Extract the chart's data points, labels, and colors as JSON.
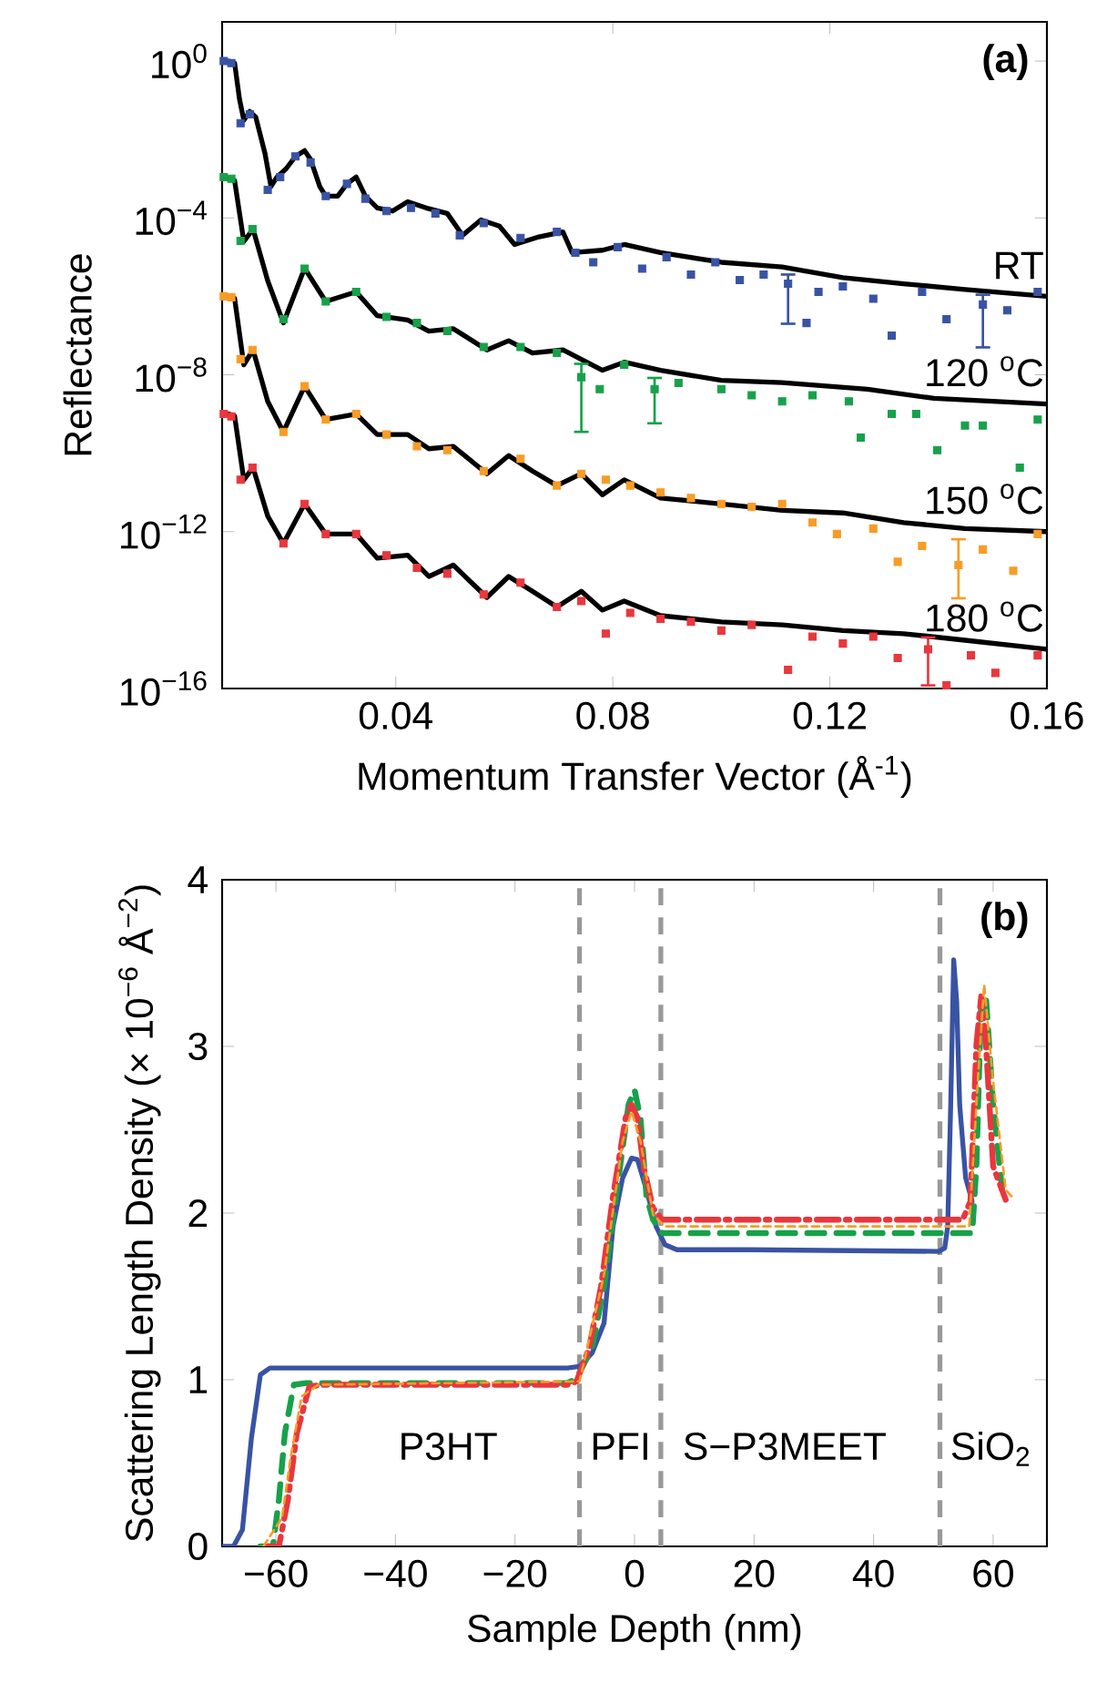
{
  "chart_data": [
    {
      "type": "scatter",
      "xlabel": "Momentum Transfer Vector (Å$^{-1}$)",
      "ylabel": "Reflectance",
      "log": "y",
      "xlim": [
        0.008,
        0.16
      ],
      "ylim": [
        1e-16,
        10
      ],
      "xticks": [
        0.04,
        0.08,
        0.12,
        0.16
      ],
      "yticks": [
        {
          "value": 1,
          "label": "10$^{0}$"
        },
        {
          "value": 0.0001,
          "label": "10$^{−4}$"
        },
        {
          "value": 1e-08,
          "label": "10$^{−8}$"
        },
        {
          "value": 1e-12,
          "label": "10$^{−12}$"
        },
        {
          "value": 1e-16,
          "label": "10$^{−16}$"
        }
      ],
      "annotations": [
        "(a)"
      ],
      "series": [
        {
          "name": "RT",
          "marker": "square",
          "color": "#3953a4",
          "x": [
            0.0083,
            0.0097,
            0.0114,
            0.0131,
            0.0164,
            0.0187,
            0.0215,
            0.0243,
            0.0271,
            0.031,
            0.0344,
            0.0383,
            0.0428,
            0.0473,
            0.0518,
            0.0562,
            0.063,
            0.0697,
            0.0731,
            0.0764,
            0.0809,
            0.0854,
            0.0899,
            0.0944,
            0.0989,
            0.1034,
            0.1078,
            0.1123,
            0.1157,
            0.1179,
            0.1224,
            0.128,
            0.1314,
            0.137,
            0.1415,
            0.1482,
            0.1527,
            0.1583
          ],
          "values": [
            1,
            0.89,
            0.026,
            0.044,
            0.00052,
            0.0011,
            0.0037,
            0.0026,
            0.00036,
            0.00074,
            0.00031,
            0.00015,
            0.00018,
            0.00013,
            3.6e-05,
            7.4e-05,
            3.1e-05,
            4.4e-05,
            1.3e-05,
            7.4e-06,
            1.8e-05,
            5.1e-06,
            1e-05,
            3.6e-06,
            7.4e-06,
            2.6e-06,
            3.6e-06,
            2.1e-06,
            2.1e-07,
            1.3e-06,
            1.8e-06,
            8.7e-07,
            1e-07,
            1.3e-06,
            2.6e-07,
            6.2e-07,
            4.4e-07,
            1.3e-06
          ],
          "errors": [
            null,
            null,
            null,
            null,
            null,
            null,
            null,
            null,
            null,
            null,
            null,
            null,
            null,
            null,
            null,
            null,
            null,
            null,
            null,
            null,
            null,
            null,
            null,
            null,
            null,
            null,
            null,
            [
              2e-07,
              3.6e-06
            ],
            null,
            null,
            null,
            null,
            null,
            null,
            null,
            [
              5e-08,
              1.1e-06
            ],
            null,
            null
          ]
        },
        {
          "name": "120 $^{o}$C",
          "marker": "square",
          "color": "#17a14a",
          "x": [
            0.0083,
            0.0097,
            0.0114,
            0.0136,
            0.0193,
            0.0232,
            0.0271,
            0.0327,
            0.0383,
            0.0439,
            0.0495,
            0.0562,
            0.063,
            0.0697,
            0.0742,
            0.0776,
            0.0821,
            0.0877,
            0.0921,
            0.1,
            0.1056,
            0.1112,
            0.1168,
            0.1235,
            0.1257,
            0.1314,
            0.1359,
            0.1398,
            0.1449,
            0.1482,
            0.155,
            0.1583
          ],
          "values": [
            0.0011,
            0.001,
            2.6e-05,
            5.2e-05,
            2.6e-07,
            5.1e-06,
            7.4e-07,
            1.3e-06,
            3e-07,
            2.1e-07,
            1.3e-07,
            5.1e-08,
            5.1e-08,
            3.6e-08,
            8.7e-09,
            4.3e-09,
            1.8e-08,
            4.3e-09,
            6.2e-09,
            4.3e-09,
            3e-09,
            2.1e-09,
            3e-09,
            2.1e-09,
            2.5e-10,
            1e-09,
            1e-09,
            1.2e-10,
            5.1e-10,
            5.1e-10,
            4.3e-11,
            7.2e-10
          ],
          "errors": [
            null,
            null,
            null,
            null,
            null,
            null,
            null,
            null,
            null,
            null,
            null,
            null,
            null,
            null,
            [
              3.5e-10,
              1.9e-08
            ],
            null,
            null,
            [
              5.8e-10,
              8.3e-09
            ],
            null,
            null,
            null,
            null,
            null,
            null,
            null,
            null,
            null,
            null,
            null,
            null,
            null,
            null
          ]
        },
        {
          "name": "150 $^{o}$C",
          "marker": "square",
          "color": "#f89c27",
          "x": [
            0.0083,
            0.0097,
            0.0114,
            0.0136,
            0.0193,
            0.0232,
            0.0271,
            0.0327,
            0.0383,
            0.0439,
            0.0495,
            0.0562,
            0.063,
            0.0697,
            0.0742,
            0.0787,
            0.0832,
            0.0888,
            0.0944,
            0.1,
            0.1056,
            0.1112,
            0.1168,
            0.1213,
            0.128,
            0.1325,
            0.137,
            0.1437,
            0.1482,
            0.1538,
            0.1583
          ],
          "values": [
            1e-06,
            9.5e-07,
            2.5e-08,
            4.3e-08,
            3.5e-10,
            5.1e-09,
            7.2e-10,
            1e-09,
            3e-10,
            1.5e-10,
            1.2e-10,
            3.5e-11,
            7.2e-11,
            1.5e-11,
            3e-11,
            2.1e-11,
            1.5e-11,
            1e-11,
            7.2e-12,
            5.1e-12,
            4.3e-12,
            5.1e-12,
            1.7e-12,
            8.7e-13,
            1.2e-12,
            1.7e-13,
            4.3e-13,
            1.4e-13,
            3.5e-13,
            1e-13,
            8.7e-13
          ],
          "errors": [
            null,
            null,
            null,
            null,
            null,
            null,
            null,
            null,
            null,
            null,
            null,
            null,
            null,
            null,
            null,
            null,
            null,
            null,
            null,
            null,
            null,
            null,
            null,
            null,
            null,
            null,
            null,
            [
              2e-14,
              6.4e-13
            ],
            null,
            null,
            null
          ]
        },
        {
          "name": "180 $^{o}$C",
          "marker": "square",
          "color": "#e8373d",
          "x": [
            0.0083,
            0.0097,
            0.0114,
            0.0136,
            0.0193,
            0.0232,
            0.0271,
            0.0327,
            0.0383,
            0.0439,
            0.0495,
            0.0562,
            0.063,
            0.0697,
            0.0742,
            0.0787,
            0.0832,
            0.0888,
            0.0944,
            0.1,
            0.1056,
            0.1123,
            0.1168,
            0.1224,
            0.128,
            0.1325,
            0.1381,
            0.1415,
            0.146,
            0.1505,
            0.1583
          ],
          "values": [
            1e-09,
            8.7e-10,
            2.1e-11,
            4.3e-11,
            5e-13,
            5.1e-12,
            8.7e-13,
            8.7e-13,
            2.5e-13,
            1.2e-13,
            8.5e-14,
            2.5e-14,
            5e-14,
            1.2e-14,
            1.7e-14,
            2.5e-15,
            8.5e-15,
            6e-15,
            5e-15,
            3e-15,
            4.2e-15,
            3e-16,
            2.1e-15,
            1.4e-15,
            2.1e-15,
            6e-16,
            1e-15,
            1.2e-16,
            7e-16,
            2.5e-16,
            7e-16
          ],
          "errors": [
            null,
            null,
            null,
            null,
            null,
            null,
            null,
            null,
            null,
            null,
            null,
            null,
            null,
            null,
            null,
            null,
            null,
            null,
            null,
            null,
            null,
            null,
            null,
            null,
            null,
            null,
            [
              1.2e-16,
              2e-15
            ],
            null,
            null,
            null,
            null
          ]
        },
        {
          "type": "line",
          "color": "#000000",
          "x": [
            0.0092,
            0.0103,
            0.0112,
            0.012,
            0.0131,
            0.0142,
            0.0159,
            0.017,
            0.0181,
            0.0198,
            0.0215,
            0.0232,
            0.0243,
            0.026,
            0.0271,
            0.0293,
            0.031,
            0.0327,
            0.0344,
            0.0366,
            0.0394,
            0.0422,
            0.0456,
            0.0495,
            0.0523,
            0.0557,
            0.0591,
            0.0619,
            0.0664,
            0.0708,
            0.0725,
            0.0781,
            0.0821,
            0.0888,
            0.1,
            0.1112,
            0.1224,
            0.1336,
            0.1449,
            0.16
          ],
          "values": [
            1,
            0.89,
            0.107,
            0.031,
            0.052,
            0.037,
            0.0044,
            0.00063,
            0.0011,
            0.0018,
            0.0037,
            0.0052,
            0.0031,
            0.00063,
            0.00036,
            0.00036,
            0.00074,
            0.0011,
            0.00036,
            0.00018,
            0.00015,
            0.00026,
            0.00018,
            0.00013,
            3.6e-05,
            8.9e-05,
            6.2e-05,
            2.1e-05,
            3.3e-05,
            4.4e-05,
            1.3e-05,
            1.5e-05,
            2.1e-05,
            1.3e-05,
            7.4e-06,
            5.6e-06,
            3e-06,
            2.1e-06,
            1.5e-06,
            1e-06
          ]
        },
        {
          "type": "line",
          "color": "#000000",
          "x": [
            0.0092,
            0.0103,
            0.012,
            0.0137,
            0.0164,
            0.0193,
            0.0232,
            0.0271,
            0.0327,
            0.0366,
            0.0422,
            0.0461,
            0.0506,
            0.0568,
            0.0608,
            0.0652,
            0.0708,
            0.0781,
            0.0821,
            0.0888,
            0.1,
            0.1112,
            0.1269,
            0.1392,
            0.16
          ],
          "values": [
            0.001,
            0.00089,
            2.5e-05,
            5.2e-05,
            2.5e-06,
            2.1e-07,
            5.2e-06,
            7.4e-07,
            1.3e-06,
            3.2e-07,
            2.5e-07,
            1.3e-07,
            1.5e-07,
            4.3e-08,
            7.4e-08,
            3.6e-08,
            4.3e-08,
            1.3e-08,
            2.1e-08,
            1.3e-08,
            7.2e-09,
            6.3e-09,
            4.3e-09,
            2.5e-09,
            1.8e-09
          ]
        },
        {
          "type": "line",
          "color": "#000000",
          "x": [
            0.0092,
            0.0103,
            0.012,
            0.0137,
            0.0164,
            0.0193,
            0.0232,
            0.0271,
            0.0327,
            0.0366,
            0.0422,
            0.0461,
            0.0506,
            0.0568,
            0.0608,
            0.0652,
            0.0697,
            0.0742,
            0.0781,
            0.0821,
            0.0888,
            0.1,
            0.1112,
            0.1224,
            0.1336,
            0.1449,
            0.16
          ],
          "values": [
            1e-06,
            8.9e-07,
            1.8e-08,
            4.3e-08,
            2.1e-09,
            3.5e-10,
            5.1e-09,
            7.2e-10,
            1e-09,
            3e-10,
            3e-10,
            1.3e-10,
            1.5e-10,
            3e-11,
            8.7e-11,
            3.5e-11,
            1.5e-11,
            3e-11,
            8.7e-12,
            2.1e-11,
            7.2e-12,
            5.1e-12,
            3.5e-12,
            3e-12,
            1.7e-12,
            1.2e-12,
            1e-12
          ]
        },
        {
          "type": "line",
          "color": "#000000",
          "x": [
            0.0092,
            0.0103,
            0.012,
            0.0137,
            0.0164,
            0.0193,
            0.0232,
            0.0271,
            0.0327,
            0.0366,
            0.0422,
            0.0461,
            0.0506,
            0.0568,
            0.0608,
            0.0652,
            0.0697,
            0.0742,
            0.0781,
            0.0821,
            0.0888,
            0.1,
            0.1112,
            0.1224,
            0.1336,
            0.1449,
            0.16
          ],
          "values": [
            1e-09,
            8.9e-10,
            2.1e-11,
            4.3e-11,
            2.5e-12,
            5e-13,
            5.1e-12,
            8.7e-13,
            8.7e-13,
            2.1e-13,
            2.5e-13,
            7.2e-14,
            1.4e-13,
            2.1e-14,
            7.2e-14,
            3e-14,
            1.2e-14,
            3e-14,
            1e-14,
            1.7e-14,
            7.2e-15,
            5e-15,
            4.2e-15,
            3e-15,
            2.5e-15,
            1.7e-15,
            1e-15
          ]
        }
      ]
    },
    {
      "type": "line",
      "xlabel": "Sample Depth (nm)",
      "ylabel": "Scattering Length Density (× 10$^{−6}$ Å$^{−2}$)",
      "xlim": [
        -69,
        69
      ],
      "ylim": [
        0,
        4
      ],
      "xticks": [
        {
          "value": -60,
          "label": "−60"
        },
        {
          "value": -40,
          "label": "−40"
        },
        {
          "value": -20,
          "label": "−20"
        },
        0,
        20,
        40,
        60
      ],
      "yticks": [
        0,
        1,
        2,
        3,
        4
      ],
      "annotations": [
        "(b)",
        "P3HT",
        "PFI",
        "S−P3MEET",
        "SiO$_{2}$"
      ],
      "ref_lines": [
        {
          "axis": "x",
          "value": -9.2,
          "color": "#999999",
          "line_style": "dashed"
        },
        {
          "axis": "x",
          "value": 4.4,
          "color": "#999999",
          "line_style": "dashed"
        },
        {
          "axis": "x",
          "value": 51.1,
          "color": "#999999",
          "line_style": "dashed"
        }
      ],
      "series": [
        {
          "color": "#3953a4",
          "line_style": "solid",
          "x": [
            -69,
            -67.1,
            -65.6,
            -64.1,
            -62.6,
            -61.0,
            -11.2,
            -9.2,
            -7.1,
            -5.1,
            -3.6,
            -2.0,
            -0.5,
            0.5,
            2.0,
            3.6,
            5.1,
            7.1,
            19.3,
            50.9,
            51.9,
            52.4,
            52.9,
            53.4,
            53.9,
            54.4,
            55.4,
            56.5
          ],
          "values": [
            0,
            0,
            0.1,
            0.65,
            1.03,
            1.07,
            1.07,
            1.08,
            1.16,
            1.34,
            1.92,
            2.21,
            2.33,
            2.32,
            2.14,
            1.92,
            1.81,
            1.78,
            1.78,
            1.77,
            1.79,
            1.92,
            2.65,
            3.52,
            3.27,
            2.65,
            2.21,
            2.07
          ]
        },
        {
          "color": "#17a14a",
          "line_style": "dashed",
          "x": [
            -62.6,
            -60.5,
            -59.5,
            -58.5,
            -57.0,
            -54.9,
            -11.2,
            -9.7,
            -7.1,
            -5.1,
            -3.1,
            -1.0,
            0,
            1.0,
            2.0,
            3.1,
            4.6,
            19.3,
            56.5,
            57.2,
            58.0,
            58.8,
            60.0,
            61.5
          ],
          "values": [
            0,
            0,
            0.28,
            0.68,
            0.97,
            0.98,
            0.98,
            1.01,
            1.19,
            1.56,
            2.1,
            2.65,
            2.74,
            2.57,
            2.1,
            1.96,
            1.88,
            1.88,
            1.88,
            2.28,
            3.27,
            3.3,
            2.65,
            2.14
          ]
        },
        {
          "color": "#e8373d",
          "line_style": "dashdot",
          "x": [
            -61.5,
            -59.5,
            -58.0,
            -56.5,
            -54.4,
            -51.9,
            -11.2,
            -9.7,
            -7.6,
            -5.6,
            -3.6,
            -1.5,
            -0.5,
            0.5,
            1.5,
            3.1,
            4.6,
            19.3,
            54.9,
            56.2,
            57.2,
            58.0,
            58.8,
            60.0,
            62.1
          ],
          "values": [
            0,
            0,
            0.28,
            0.68,
            0.96,
            0.97,
            0.97,
            0.99,
            1.19,
            1.56,
            2.1,
            2.57,
            2.65,
            2.57,
            2.28,
            2.03,
            1.96,
            1.96,
            1.96,
            2.07,
            3.01,
            3.3,
            3.01,
            2.28,
            2.08
          ]
        },
        {
          "color": "#f89c27",
          "line_style": "dotted",
          "x": [
            -62.1,
            -59.0,
            -57.5,
            -55.7,
            -52.9,
            -9.2,
            -5.1,
            -2.0,
            -0.5,
            1.0,
            3.1,
            5.1,
            56.0,
            57.5,
            58.5,
            60.0,
            62.1,
            63.1
          ],
          "values": [
            0,
            0.17,
            0.54,
            0.9,
            0.97,
            0.99,
            1.63,
            2.43,
            2.61,
            2.43,
            1.99,
            1.92,
            1.92,
            2.83,
            3.37,
            2.79,
            2.14,
            2.1
          ]
        }
      ]
    }
  ]
}
